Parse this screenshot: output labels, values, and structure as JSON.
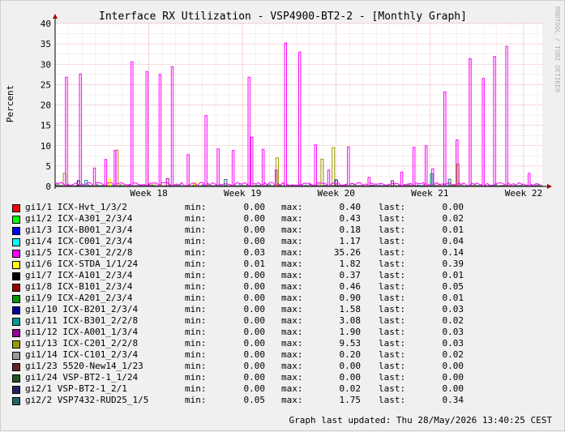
{
  "graph": {
    "title": "Interface RX Utilization - VSP4900-BT2-2 - [Monthly Graph]",
    "side_text": "RRDTOOL / TOBI OETIKER",
    "footer_text": "Graph last updated: Thu 28/May/2026 13:40:25 CEST",
    "stat_labels": {
      "min": "min:",
      "max": "max:",
      "last": "last:"
    }
  },
  "chart_data": {
    "type": "line",
    "ylabel": "Percent",
    "ylim": [
      0,
      40
    ],
    "yticks": [
      "0",
      "5",
      "10",
      "15",
      "20",
      "25",
      "30",
      "35",
      "40"
    ],
    "xlim": [
      17.0,
      22.2
    ],
    "xticks": [
      {
        "label": "Week 18",
        "x": 18
      },
      {
        "label": "Week 19",
        "x": 19
      },
      {
        "label": "Week 20",
        "x": 20
      },
      {
        "label": "Week 21",
        "x": 21
      },
      {
        "label": "Week 22",
        "x": 22
      }
    ],
    "grid": true,
    "spike_series": "gi1/5 ICX-C301_2/2/8",
    "spikes": [
      [
        17.12,
        26.8
      ],
      [
        17.27,
        27.6
      ],
      [
        17.42,
        4.5
      ],
      [
        17.54,
        6.6
      ],
      [
        17.64,
        8.8
      ],
      [
        17.82,
        30.6
      ],
      [
        17.98,
        28.2
      ],
      [
        18.12,
        27.5
      ],
      [
        18.25,
        29.4
      ],
      [
        18.42,
        7.8
      ],
      [
        18.61,
        17.4
      ],
      [
        18.74,
        9.2
      ],
      [
        18.9,
        8.8
      ],
      [
        19.07,
        26.8
      ],
      [
        19.1,
        12.1
      ],
      [
        19.22,
        9.1
      ],
      [
        19.36,
        4.0
      ],
      [
        19.46,
        35.2
      ],
      [
        19.61,
        33.0
      ],
      [
        19.78,
        10.2
      ],
      [
        19.92,
        4.0
      ],
      [
        20.13,
        9.7
      ],
      [
        20.35,
        2.2
      ],
      [
        20.7,
        3.5
      ],
      [
        20.83,
        9.6
      ],
      [
        20.96,
        10.0
      ],
      [
        21.03,
        4.3
      ],
      [
        21.16,
        23.2
      ],
      [
        21.29,
        11.4
      ],
      [
        21.43,
        31.4
      ],
      [
        21.57,
        26.5
      ],
      [
        21.69,
        31.9
      ],
      [
        21.82,
        34.4
      ],
      [
        22.06,
        3.2
      ]
    ],
    "minor_spikes": [
      {
        "series": "gi1/13 ICX-C201_2/2/8",
        "points": [
          [
            17.1,
            3.2
          ],
          [
            17.66,
            8.9
          ],
          [
            19.37,
            7.0
          ],
          [
            19.85,
            6.7
          ],
          [
            19.97,
            9.5
          ],
          [
            21.3,
            5.5
          ]
        ]
      },
      {
        "series": "gi1/11 ICX-B301_2/2/8",
        "points": [
          [
            17.33,
            1.5
          ],
          [
            21.02,
            3.1
          ]
        ]
      },
      {
        "series": "gi1/6 ICX-STDA_1/1/24",
        "points": [
          [
            17.58,
            1.8
          ],
          [
            18.5,
            1.0
          ]
        ]
      },
      {
        "series": "gi1/12 ICX-A001_1/3/4",
        "points": [
          [
            18.2,
            1.9
          ],
          [
            20.6,
            1.4
          ]
        ]
      },
      {
        "series": "gi1/10 ICX-B201_2/3/4",
        "points": [
          [
            17.25,
            1.4
          ],
          [
            20.0,
            1.6
          ]
        ]
      },
      {
        "series": "gi2/2 VSP7432-RUD25_1/5",
        "points": [
          [
            18.82,
            1.7
          ],
          [
            21.21,
            1.75
          ]
        ]
      }
    ],
    "series": [
      {
        "name": "gi1/1 ICX-Hvt_1/3/2",
        "color": "#ff0000",
        "min": "0.00",
        "max": "0.40",
        "last": "0.00"
      },
      {
        "name": "gi1/2 ICX-A301_2/3/4",
        "color": "#00ff00",
        "min": "0.00",
        "max": "0.43",
        "last": "0.02"
      },
      {
        "name": "gi1/3 ICX-B001_2/3/4",
        "color": "#0000ff",
        "min": "0.00",
        "max": "0.18",
        "last": "0.01"
      },
      {
        "name": "gi1/4 ICX-C001_2/3/4",
        "color": "#00ffff",
        "min": "0.00",
        "max": "1.17",
        "last": "0.04"
      },
      {
        "name": "gi1/5 ICX-C301_2/2/8",
        "color": "#ff00ff",
        "min": "0.03",
        "max": "35.26",
        "last": "0.14"
      },
      {
        "name": "gi1/6 ICX-STDA_1/1/24",
        "color": "#ffff00",
        "min": "0.01",
        "max": "1.82",
        "last": "0.39"
      },
      {
        "name": "gi1/7 ICX-A101_2/3/4",
        "color": "#000000",
        "min": "0.00",
        "max": "0.37",
        "last": "0.01"
      },
      {
        "name": "gi1/8 ICX-B101_2/3/4",
        "color": "#990000",
        "min": "0.00",
        "max": "0.46",
        "last": "0.05"
      },
      {
        "name": "gi1/9 ICX-A201_2/3/4",
        "color": "#009900",
        "min": "0.00",
        "max": "0.90",
        "last": "0.01"
      },
      {
        "name": "gi1/10 ICX-B201_2/3/4",
        "color": "#000099",
        "min": "0.00",
        "max": "1.58",
        "last": "0.03"
      },
      {
        "name": "gi1/11 ICX-B301_2/2/8",
        "color": "#009999",
        "min": "0.00",
        "max": "3.08",
        "last": "0.02"
      },
      {
        "name": "gi1/12 ICX-A001_1/3/4",
        "color": "#990099",
        "min": "0.00",
        "max": "1.90",
        "last": "0.03"
      },
      {
        "name": "gi1/13 ICX-C201_2/2/8",
        "color": "#999900",
        "min": "0.00",
        "max": "9.53",
        "last": "0.03"
      },
      {
        "name": "gi1/14 ICX-C101_2/3/4",
        "color": "#999999",
        "min": "0.00",
        "max": "0.20",
        "last": "0.02"
      },
      {
        "name": "gi1/23 5520-New14_1/23",
        "color": "#662222",
        "min": "0.00",
        "max": "0.00",
        "last": "0.00"
      },
      {
        "name": "gi1/24 VSP-BT2-1_1/24",
        "color": "#225522",
        "min": "0.00",
        "max": "0.00",
        "last": "0.00"
      },
      {
        "name": "gi2/1 VSP-BT2-1_2/1",
        "color": "#222266",
        "min": "0.00",
        "max": "0.02",
        "last": "0.00"
      },
      {
        "name": "gi2/2 VSP7432-RUD25_1/5",
        "color": "#226666",
        "min": "0.05",
        "max": "1.75",
        "last": "0.34"
      }
    ]
  }
}
